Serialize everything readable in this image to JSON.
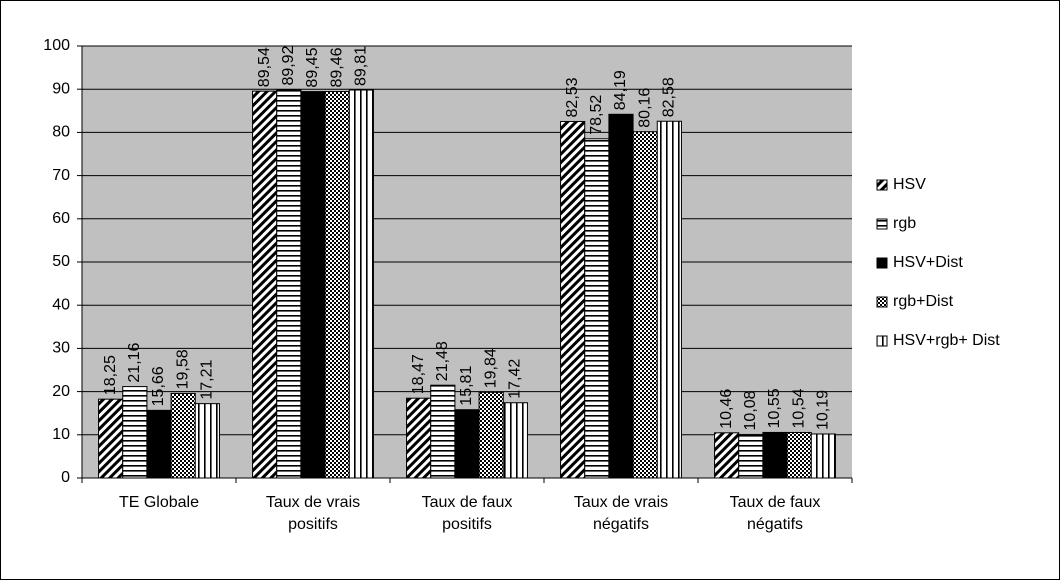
{
  "chart_data": {
    "type": "bar",
    "categories": [
      "TE Globale",
      "Taux de vrais positifs",
      "Taux de faux positifs",
      "Taux de vrais négatifs",
      "Taux de faux négatifs"
    ],
    "series": [
      {
        "name": "HSV",
        "color": "#000000",
        "values": [
          18.25,
          89.54,
          18.47,
          82.53,
          10.46
        ],
        "value_labels": [
          "18,25",
          "89,54",
          "18,47",
          "82,53",
          "10,46"
        ]
      },
      {
        "name": "rgb",
        "color": "#000000",
        "values": [
          21.16,
          89.92,
          21.48,
          78.52,
          10.08
        ],
        "value_labels": [
          "21,16",
          "89,92",
          "21,48",
          "78,52",
          "10,08"
        ]
      },
      {
        "name": "HSV+Dist",
        "color": "#000000",
        "values": [
          15.66,
          89.45,
          15.81,
          84.19,
          10.55
        ],
        "value_labels": [
          "15,66",
          "89,45",
          "15,81",
          "84,19",
          "10,55"
        ]
      },
      {
        "name": "rgb+Dist",
        "color": "#000000",
        "values": [
          19.58,
          89.46,
          19.84,
          80.16,
          10.54
        ],
        "value_labels": [
          "19,58",
          "89,46",
          "19,84",
          "80,16",
          "10,54"
        ]
      },
      {
        "name": "HSV+rgb+ Dist",
        "color": "#000000",
        "values": [
          17.21,
          89.81,
          17.42,
          82.58,
          10.19
        ],
        "value_labels": [
          "17,21",
          "89,81",
          "17,42",
          "82,58",
          "10,19"
        ]
      }
    ],
    "ylim": [
      0,
      100
    ],
    "yticks": [
      0,
      10,
      20,
      30,
      40,
      50,
      60,
      70,
      80,
      90,
      100
    ],
    "grid": true,
    "legend": "right"
  }
}
